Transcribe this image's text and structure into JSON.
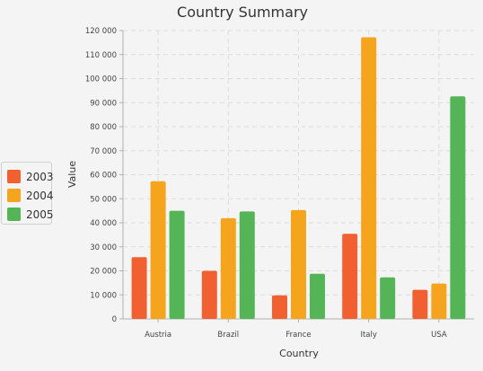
{
  "chart_data": {
    "type": "bar",
    "title": "Country Summary",
    "xlabel": "Country",
    "ylabel": "Value",
    "categories": [
      "Austria",
      "Brazil",
      "France",
      "Italy",
      "USA"
    ],
    "series": [
      {
        "name": "2003",
        "color": "#f06030",
        "values": [
          25700,
          20000,
          9800,
          35400,
          12100
        ]
      },
      {
        "name": "2004",
        "color": "#f5a41e",
        "values": [
          57300,
          41900,
          45300,
          117200,
          14700
        ]
      },
      {
        "name": "2005",
        "color": "#55b455",
        "values": [
          45000,
          44700,
          18800,
          17300,
          92600
        ]
      }
    ],
    "ylim": [
      0,
      120000
    ],
    "yticks": [
      0,
      10000,
      20000,
      30000,
      40000,
      50000,
      60000,
      70000,
      80000,
      90000,
      100000,
      110000,
      120000
    ],
    "ytick_labels": [
      "0",
      "10 000",
      "20 000",
      "30 000",
      "40 000",
      "50 000",
      "60 000",
      "70 000",
      "80 000",
      "90 000",
      "100 000",
      "110 000",
      "120 000"
    ],
    "grid": true,
    "legend_position": "left"
  }
}
